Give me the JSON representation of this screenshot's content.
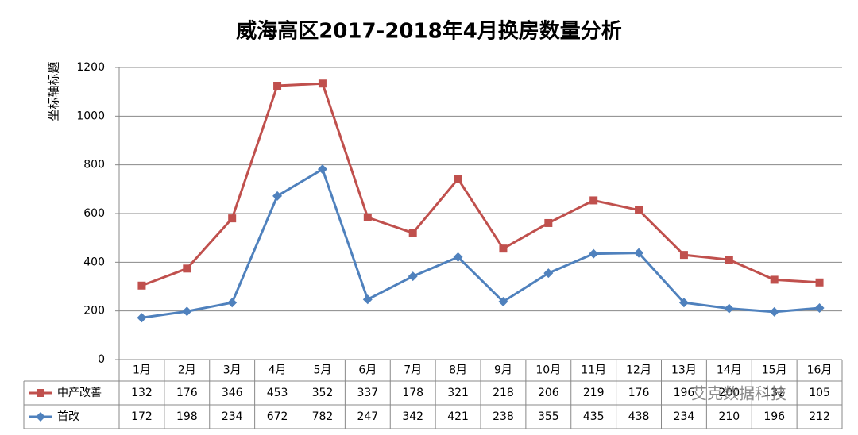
{
  "chart_data": {
    "type": "stacked-line",
    "title": "威海高区2017-2018年4月换房数量分析",
    "y_label": "坐标轴标题",
    "categories": [
      "1月",
      "2月",
      "3月",
      "4月",
      "5月",
      "6月",
      "7月",
      "8月",
      "9月",
      "10月",
      "11月",
      "12月",
      "13月",
      "14月",
      "15月",
      "16月"
    ],
    "series": [
      {
        "name": "中产改善",
        "color": "#c0504d",
        "marker": "square",
        "values": [
          132,
          176,
          346,
          453,
          352,
          337,
          178,
          321,
          218,
          206,
          219,
          176,
          196,
          200,
          132,
          105
        ]
      },
      {
        "name": "首改",
        "color": "#4f81bd",
        "marker": "diamond",
        "values": [
          172,
          198,
          234,
          672,
          782,
          247,
          342,
          421,
          238,
          355,
          435,
          438,
          234,
          210,
          196,
          212
        ]
      }
    ],
    "ylim": [
      0,
      1200
    ],
    "yticks": [
      0,
      200,
      400,
      600,
      800,
      1000,
      1200
    ],
    "grid": true,
    "data_table": true,
    "watermark": "艾克数据科技"
  }
}
